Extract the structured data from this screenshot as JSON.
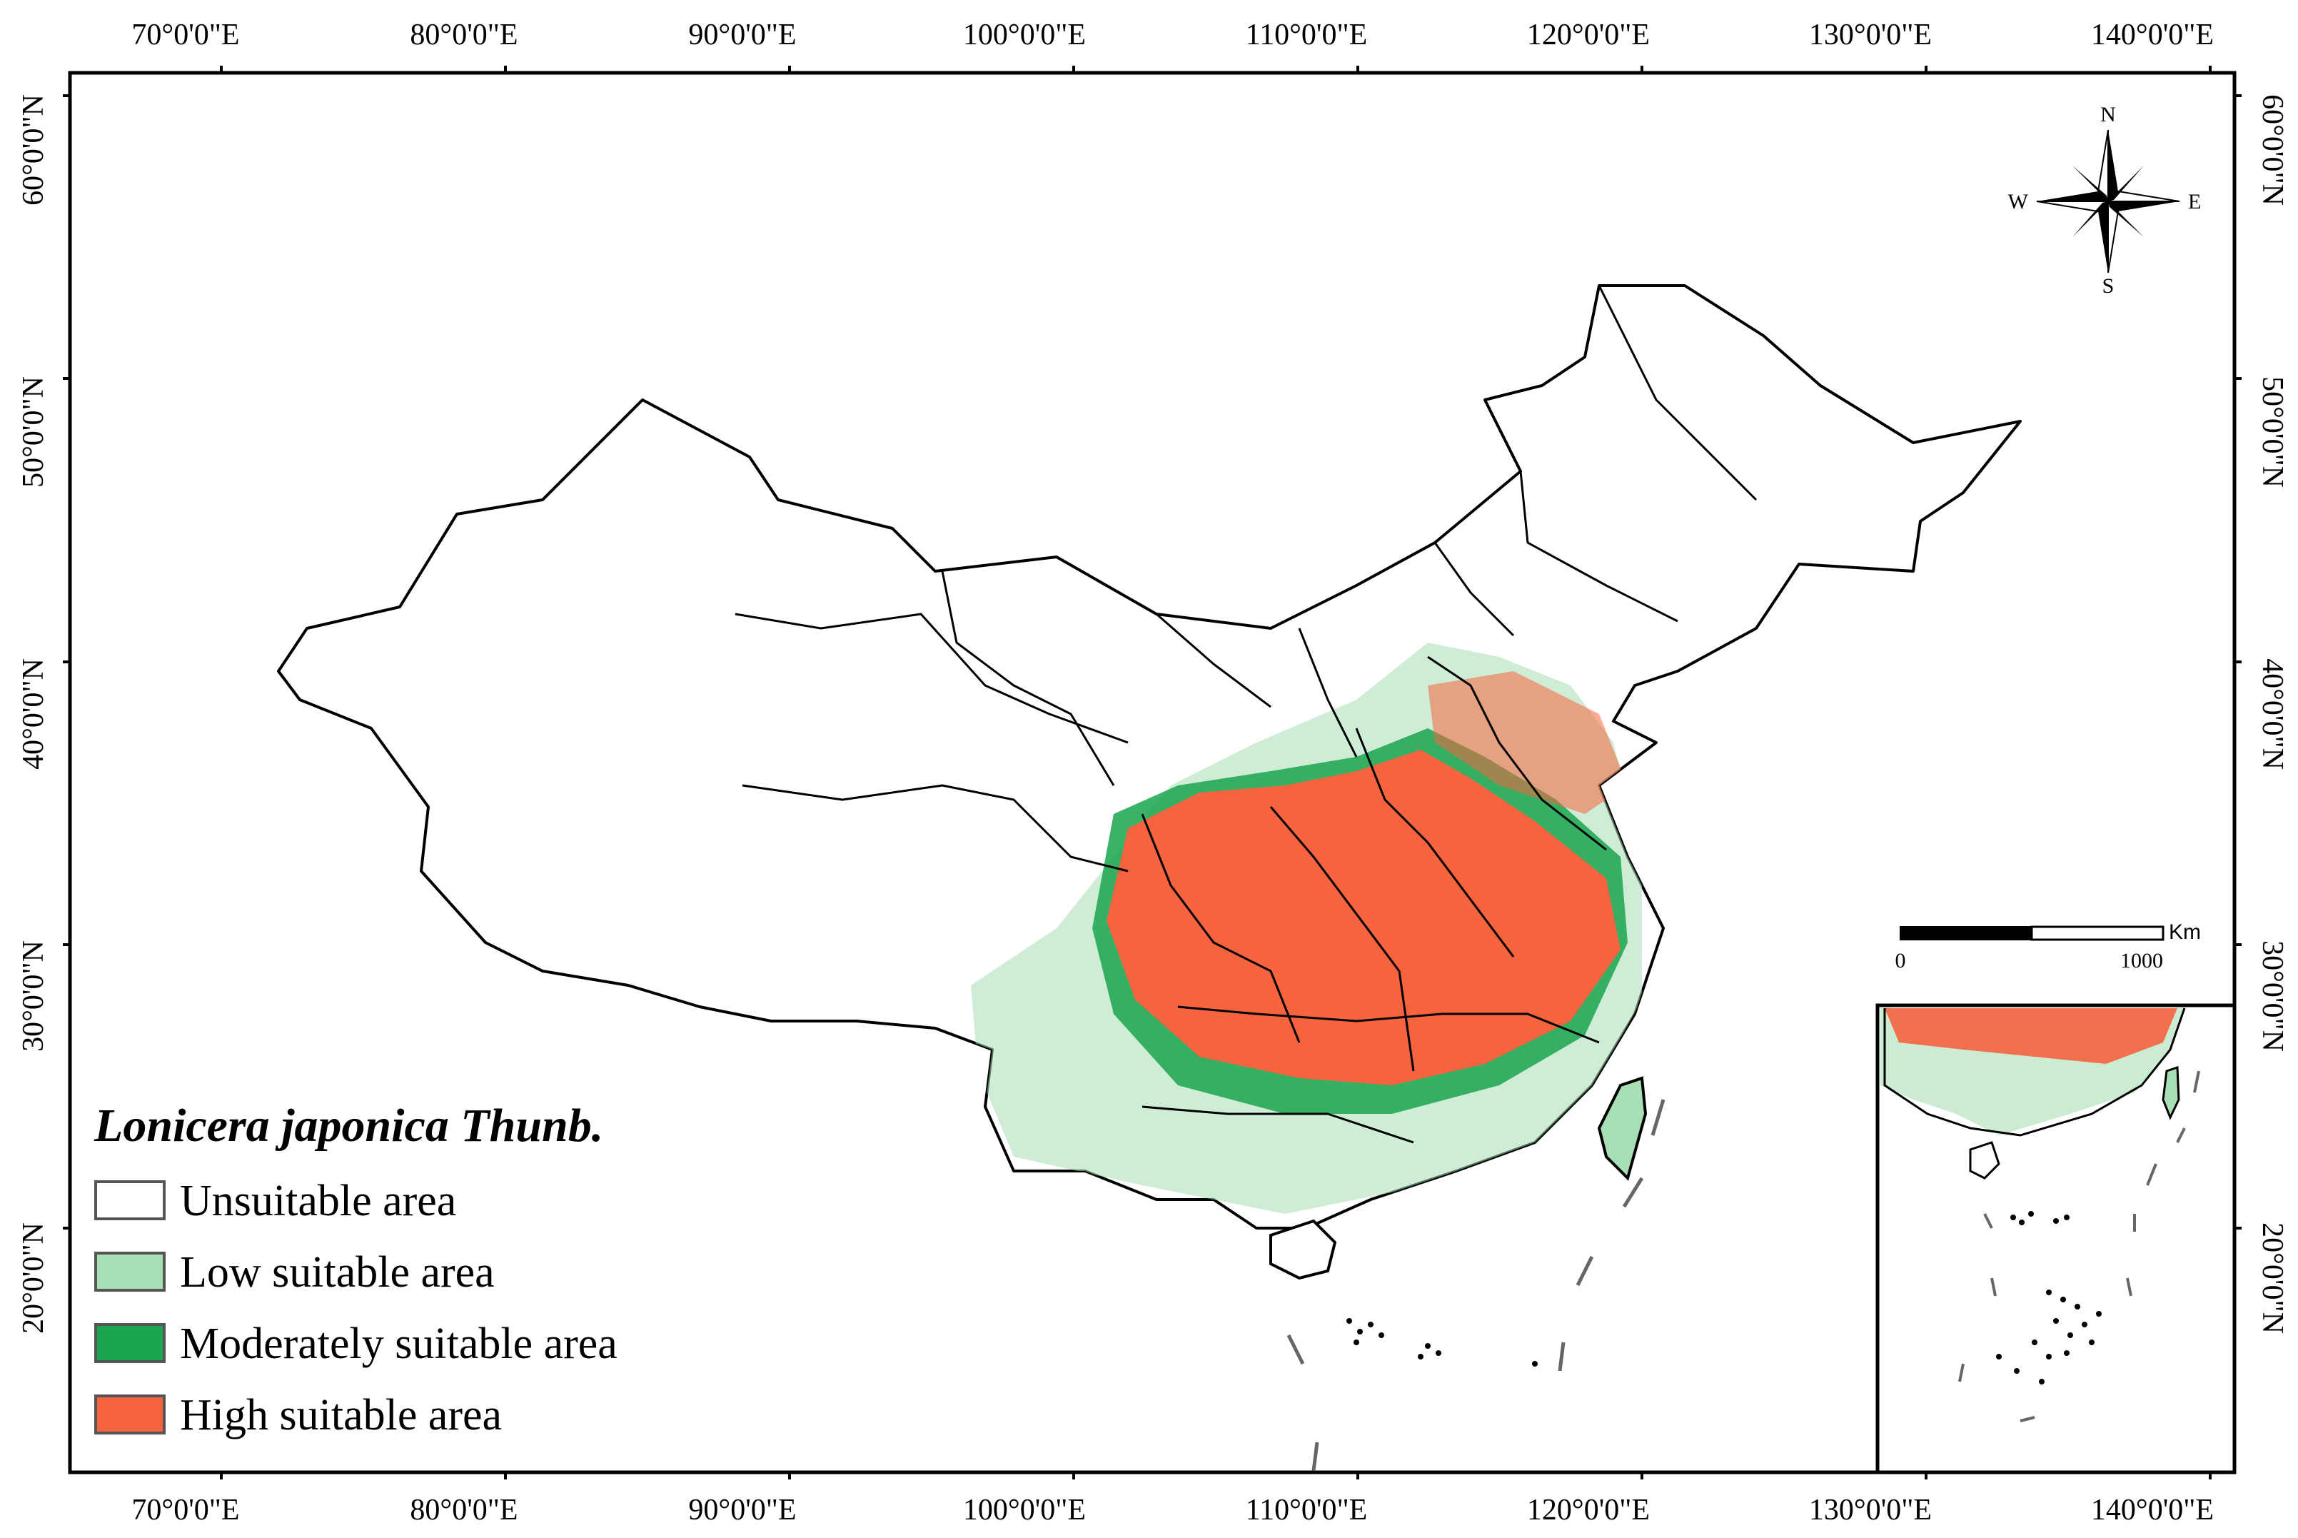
{
  "map": {
    "x_ticks": [
      "70°0'0\"E",
      "80°0'0\"E",
      "90°0'0\"E",
      "100°0'0\"E",
      "110°0'0\"E",
      "120°0'0\"E",
      "130°0'0\"E",
      "140°0'0\"E"
    ],
    "y_ticks": [
      "60°0'0\"N",
      "50°0'0\"N",
      "40°0'0\"N",
      "30°0'0\"N",
      "20°0'0\"N"
    ],
    "compass": {
      "n": "N",
      "s": "S",
      "e": "E",
      "w": "W"
    },
    "scale_bar": {
      "unit": "Km",
      "start": "0",
      "end": "1000"
    }
  },
  "legend": {
    "title": "Lonicera japonica Thunb.",
    "items": [
      {
        "label": "Unsuitable area",
        "color": "#ffffff"
      },
      {
        "label": "Low suitable area",
        "color": "#a8dfb4"
      },
      {
        "label": "Moderately suitable area",
        "color": "#1aa54f"
      },
      {
        "label": "High suitable area",
        "color": "#f5643f"
      }
    ]
  },
  "colors": {
    "frame": "#000000",
    "border": "#000000",
    "high": "#f5643f",
    "moderate": "#1aa54f",
    "low": "#a8dfb4"
  }
}
